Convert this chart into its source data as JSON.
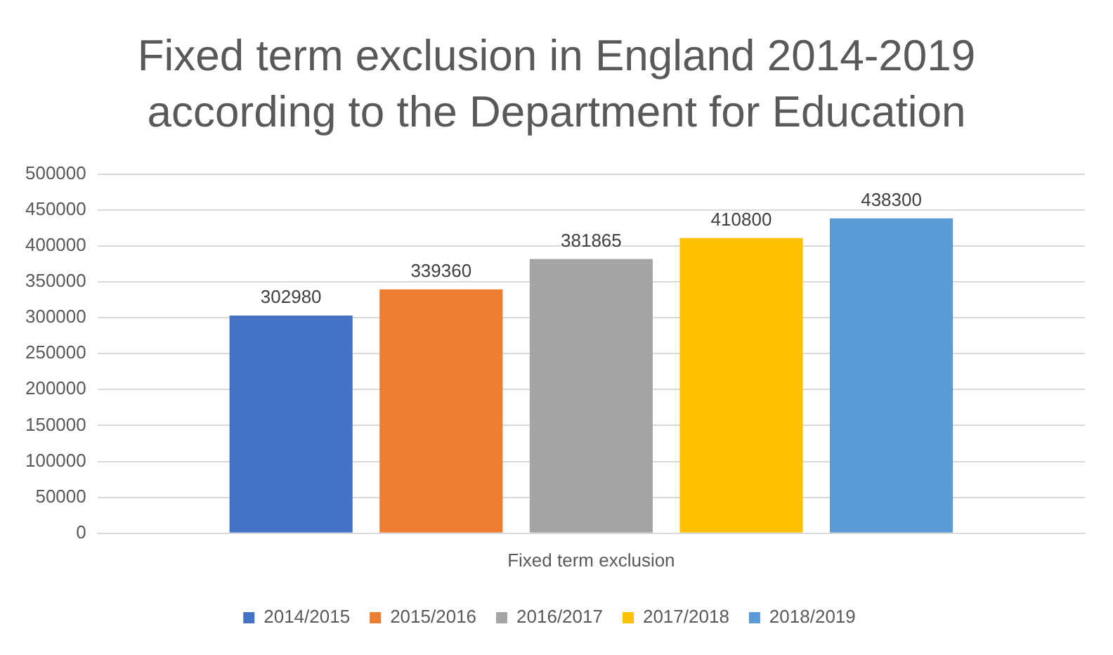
{
  "chart_data": {
    "type": "bar",
    "title": "Fixed term exclusion in England 2014-2019 according to the Department for Education",
    "categories": [
      "Fixed term exclusion"
    ],
    "series": [
      {
        "name": "2014/2015",
        "color": "#4472c4",
        "values": [
          302980
        ]
      },
      {
        "name": "2015/2016",
        "color": "#ed7d31",
        "values": [
          339360
        ]
      },
      {
        "name": "2016/2017",
        "color": "#a5a5a5",
        "values": [
          381865
        ]
      },
      {
        "name": "2017/2018",
        "color": "#ffc000",
        "values": [
          410800
        ]
      },
      {
        "name": "2018/2019",
        "color": "#5b9bd5",
        "values": [
          438300
        ]
      }
    ],
    "ylim": [
      0,
      500000
    ],
    "yticks": [
      0,
      50000,
      100000,
      150000,
      200000,
      250000,
      300000,
      350000,
      400000,
      450000,
      500000
    ],
    "grid": "y",
    "legend": "bottom",
    "data_labels": true
  }
}
